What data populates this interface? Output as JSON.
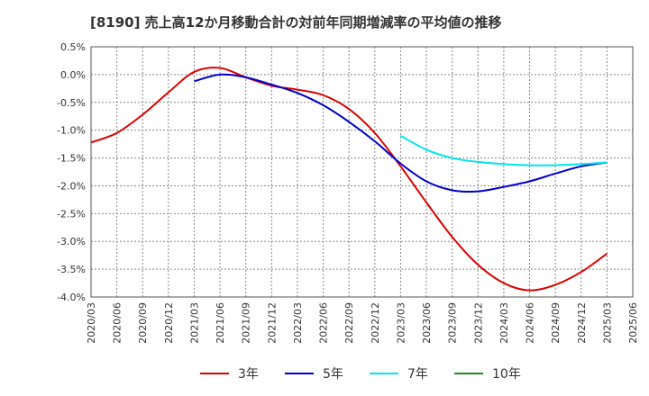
{
  "title": "[8190]  売上高12か月移動合計の対前年同期増減率の平均値の推移",
  "chart_data": {
    "type": "line",
    "y_unit": "%",
    "ylim": [
      -4.0,
      0.5
    ],
    "y_ticks": [
      0.5,
      0.0,
      -0.5,
      -1.0,
      -1.5,
      -2.0,
      -2.5,
      -3.0,
      -3.5,
      -4.0
    ],
    "y_tick_labels": [
      "0.5%",
      "0.0%",
      "-0.5%",
      "-1.0%",
      "-1.5%",
      "-2.0%",
      "-2.5%",
      "-3.0%",
      "-3.5%",
      "-4.0%"
    ],
    "x_tick_labels": [
      "2020/03",
      "2020/06",
      "2020/09",
      "2020/12",
      "2021/03",
      "2021/06",
      "2021/09",
      "2021/12",
      "2022/03",
      "2022/06",
      "2022/09",
      "2022/12",
      "2023/03",
      "2023/06",
      "2023/09",
      "2023/12",
      "2024/03",
      "2024/06",
      "2024/09",
      "2024/12",
      "2025/03",
      "2025/06"
    ],
    "grid": true,
    "legend_position": "bottom",
    "series": [
      {
        "name": "3年",
        "color": "#dd0000",
        "points": [
          [
            "2020/03",
            -1.22
          ],
          [
            "2020/06",
            -1.05
          ],
          [
            "2020/09",
            -0.72
          ],
          [
            "2020/12",
            -0.32
          ],
          [
            "2021/03",
            0.05
          ],
          [
            "2021/06",
            0.12
          ],
          [
            "2021/09",
            -0.05
          ],
          [
            "2021/12",
            -0.2
          ],
          [
            "2022/03",
            -0.27
          ],
          [
            "2022/06",
            -0.37
          ],
          [
            "2022/09",
            -0.62
          ],
          [
            "2022/12",
            -1.05
          ],
          [
            "2023/03",
            -1.65
          ],
          [
            "2023/06",
            -2.3
          ],
          [
            "2023/09",
            -2.92
          ],
          [
            "2023/12",
            -3.42
          ],
          [
            "2024/03",
            -3.75
          ],
          [
            "2024/06",
            -3.88
          ],
          [
            "2024/09",
            -3.78
          ],
          [
            "2024/12",
            -3.55
          ],
          [
            "2025/03",
            -3.22
          ]
        ]
      },
      {
        "name": "5年",
        "color": "#0000cc",
        "points": [
          [
            "2021/03",
            -0.12
          ],
          [
            "2021/06",
            0.0
          ],
          [
            "2021/09",
            -0.05
          ],
          [
            "2021/12",
            -0.18
          ],
          [
            "2022/03",
            -0.33
          ],
          [
            "2022/06",
            -0.55
          ],
          [
            "2022/09",
            -0.85
          ],
          [
            "2022/12",
            -1.2
          ],
          [
            "2023/03",
            -1.6
          ],
          [
            "2023/06",
            -1.92
          ],
          [
            "2023/09",
            -2.08
          ],
          [
            "2023/12",
            -2.1
          ],
          [
            "2024/03",
            -2.02
          ],
          [
            "2024/06",
            -1.92
          ],
          [
            "2024/09",
            -1.78
          ],
          [
            "2024/12",
            -1.65
          ],
          [
            "2025/03",
            -1.58
          ]
        ]
      },
      {
        "name": "7年",
        "color": "#00e5ee",
        "points": [
          [
            "2023/03",
            -1.1
          ],
          [
            "2023/06",
            -1.35
          ],
          [
            "2023/09",
            -1.5
          ],
          [
            "2023/12",
            -1.57
          ],
          [
            "2024/03",
            -1.61
          ],
          [
            "2024/06",
            -1.63
          ],
          [
            "2024/09",
            -1.63
          ],
          [
            "2024/12",
            -1.61
          ],
          [
            "2025/03",
            -1.58
          ]
        ]
      },
      {
        "name": "10年",
        "color": "#228b22",
        "points": []
      }
    ]
  }
}
